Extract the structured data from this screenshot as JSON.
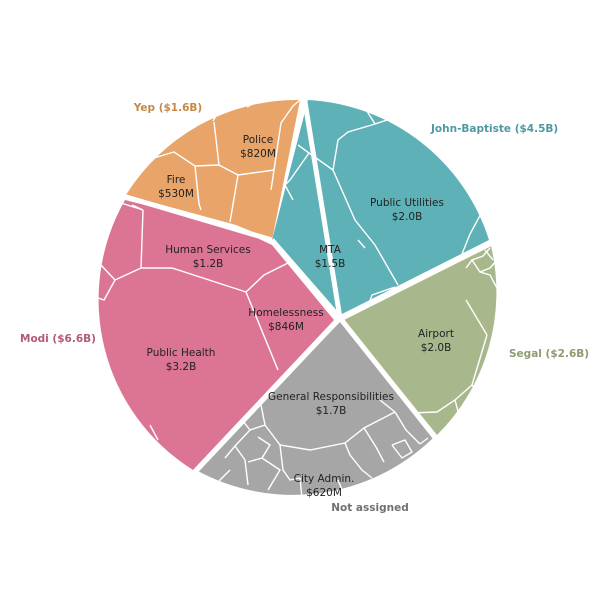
{
  "chart_data": {
    "type": "voronoi-treemap",
    "title": "",
    "groups": [
      {
        "name": "John-Baptiste",
        "total": "$4.5B",
        "color": "#5fb1b8",
        "cells": [
          {
            "name": "Public Utilities",
            "value": "$2.0B"
          },
          {
            "name": "MTA",
            "value": "$1.5B"
          }
        ]
      },
      {
        "name": "Segal",
        "total": "$2.6B",
        "color": "#a9b88c",
        "cells": [
          {
            "name": "Airport",
            "value": "$2.0B"
          }
        ]
      },
      {
        "name": "Not assigned",
        "total": "",
        "color": "#a6a6a6",
        "cells": [
          {
            "name": "General Responsibilities",
            "value": "$1.7B"
          },
          {
            "name": "City Admin.",
            "value": "$620M"
          }
        ]
      },
      {
        "name": "Modi",
        "total": "$6.6B",
        "color": "#dc7593",
        "cells": [
          {
            "name": "Public Health",
            "value": "$3.2B"
          },
          {
            "name": "Human Services",
            "value": "$1.2B"
          },
          {
            "name": "Homelessness",
            "value": "$846M"
          }
        ]
      },
      {
        "name": "Yep",
        "total": "$1.6B",
        "color": "#e8a469",
        "cells": [
          {
            "name": "Police",
            "value": "$820M"
          },
          {
            "name": "Fire",
            "value": "$530M"
          }
        ]
      }
    ]
  },
  "group_labels": {
    "john_baptiste": "John-Baptiste ($4.5B)",
    "segal": "Segal ($2.6B)",
    "not_assigned": "Not assigned",
    "modi": "Modi ($6.6B)",
    "yep": "Yep ($1.6B)"
  }
}
